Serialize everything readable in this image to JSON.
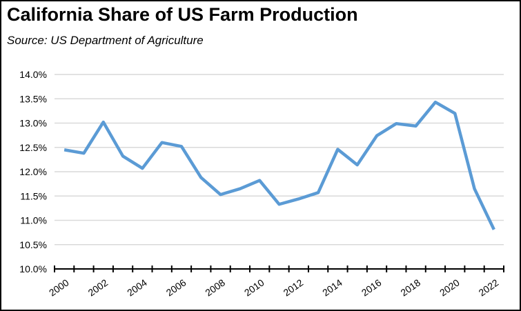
{
  "chart_data": {
    "type": "line",
    "title": "California Share of US Farm Production",
    "subtitle": "Source:  US Department of Agriculture",
    "xlabel": "",
    "ylabel": "",
    "x": [
      2000,
      2001,
      2002,
      2003,
      2004,
      2005,
      2006,
      2007,
      2008,
      2009,
      2010,
      2011,
      2012,
      2013,
      2014,
      2015,
      2016,
      2017,
      2018,
      2019,
      2020,
      2021,
      2022
    ],
    "x_tick_labels": [
      "2000",
      "2002",
      "2004",
      "2006",
      "2008",
      "2010",
      "2012",
      "2014",
      "2016",
      "2018",
      "2020",
      "2022"
    ],
    "y_tick_labels": [
      "14.0%",
      "13.5%",
      "13.0%",
      "12.5%",
      "12.0%",
      "11.5%",
      "11.0%",
      "10.5%",
      "10.0%"
    ],
    "ylim": [
      10.0,
      14.0
    ],
    "grid": true,
    "series": [
      {
        "name": "California Share",
        "color": "#5B9BD5",
        "values": [
          12.45,
          12.38,
          13.02,
          12.32,
          12.07,
          12.6,
          12.52,
          11.88,
          11.53,
          11.65,
          11.82,
          11.33,
          11.44,
          11.57,
          12.46,
          12.14,
          12.74,
          12.99,
          12.94,
          13.43,
          13.2,
          11.65,
          10.81
        ]
      }
    ]
  }
}
